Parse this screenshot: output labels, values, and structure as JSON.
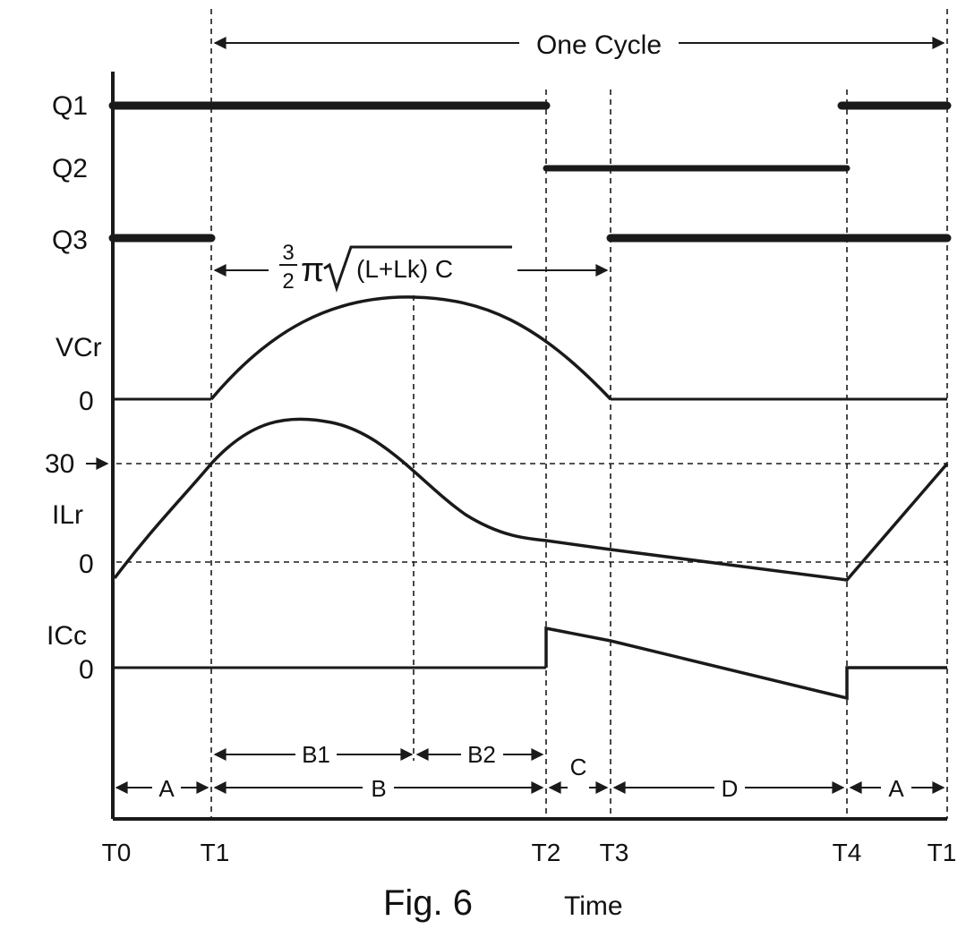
{
  "figure": {
    "caption": "Fig. 6",
    "axis_label": "Time",
    "cycle_label": "One Cycle",
    "formula": {
      "frac_num": "3",
      "frac_den": "2",
      "pi": "π",
      "radicand": "(L+Lk) C"
    },
    "signals": {
      "q1": "Q1",
      "q2": "Q2",
      "q3": "Q3",
      "vcr": "VCr",
      "vcr_zero": "0",
      "ilr": "ILr",
      "ilr_zero": "0",
      "ilr_level": "30",
      "icc": "ICc",
      "icc_zero": "0"
    },
    "time_markers": {
      "t0": "T0",
      "t1": "T1",
      "t2": "T2",
      "t3": "T3",
      "t4": "T4",
      "t1_end": "T1"
    },
    "intervals": {
      "a_start": "A",
      "b": "B",
      "b1": "B1",
      "b2": "B2",
      "c": "C",
      "d": "D",
      "a_end": "A"
    }
  }
}
